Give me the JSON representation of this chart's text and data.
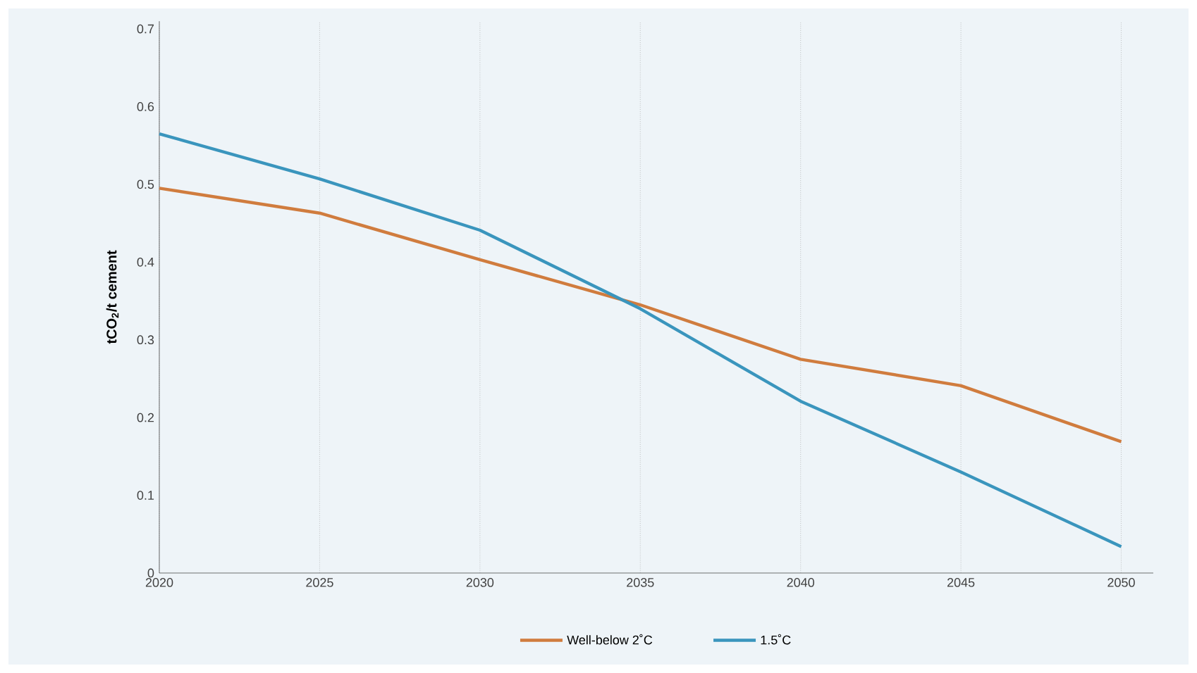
{
  "chart_data": {
    "type": "line",
    "ylabel": "tCO$_{2}$/t cement",
    "x": [
      2020,
      2025,
      2030,
      2035,
      2040,
      2045,
      2050
    ],
    "series": [
      {
        "name": "Well-below 2˚C",
        "color": "#d07c3e",
        "values": [
          0.495,
          0.463,
          0.403,
          0.345,
          0.275,
          0.241,
          0.169
        ]
      },
      {
        "name": "1.5˚C",
        "color": "#3a95bd",
        "values": [
          0.565,
          0.507,
          0.441,
          0.34,
          0.221,
          0.13,
          0.034
        ]
      }
    ],
    "xlim": [
      2020,
      2051
    ],
    "ylim": [
      0,
      0.71
    ],
    "xticks": [
      2020,
      2025,
      2030,
      2035,
      2040,
      2045,
      2050
    ],
    "yticks": [
      0,
      0.1,
      0.2,
      0.3,
      0.4,
      0.5,
      0.6,
      0.7
    ],
    "grid": "x",
    "legend": "bottom",
    "marker": "none",
    "line_style": "solid"
  }
}
